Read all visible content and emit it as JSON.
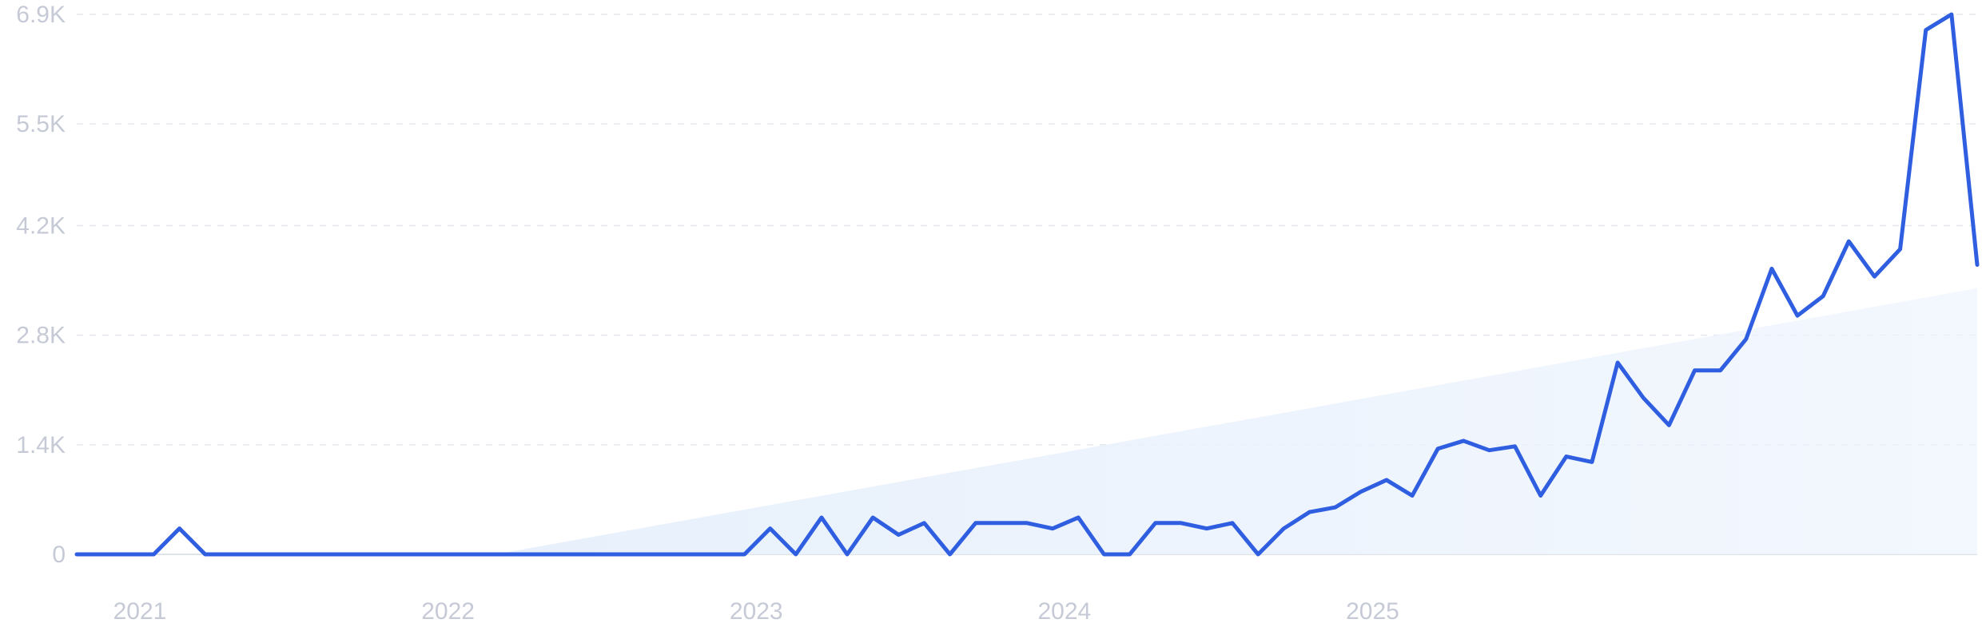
{
  "chart_data": {
    "type": "line",
    "title": "",
    "xlabel": "",
    "ylabel": "",
    "y_ticks": [
      "0",
      "1.4K",
      "2.8K",
      "4.2K",
      "5.5K",
      "6.9K"
    ],
    "y_tick_values": [
      0,
      1400,
      2800,
      4200,
      5500,
      6900
    ],
    "ylim": [
      0,
      6900
    ],
    "x_ticks": [
      "2021",
      "2022",
      "2023",
      "2024",
      "2025"
    ],
    "grid": true,
    "legend": "none",
    "series": [
      {
        "values": [
          0,
          0,
          0,
          0,
          330,
          0,
          0,
          0,
          0,
          0,
          0,
          0,
          0,
          0,
          0,
          0,
          0,
          0,
          0,
          0,
          0,
          0,
          0,
          0,
          0,
          0,
          0,
          330,
          0,
          470,
          0,
          470,
          250,
          400,
          0,
          400,
          400,
          400,
          330,
          470,
          0,
          0,
          400,
          400,
          330,
          400,
          0,
          330,
          540,
          600,
          800,
          950,
          750,
          1350,
          1450,
          1330,
          1380,
          750,
          1250,
          1180,
          2450,
          2000,
          1650,
          2350,
          2350,
          2750,
          3650,
          3050,
          3300,
          4000,
          3550,
          3900,
          6700,
          6900,
          3700
        ]
      }
    ],
    "trend": {
      "start_value": 0,
      "end_value": 3400
    },
    "colors": {
      "line": "#2f5fe0",
      "area_fill": "#e7f0fc"
    }
  }
}
